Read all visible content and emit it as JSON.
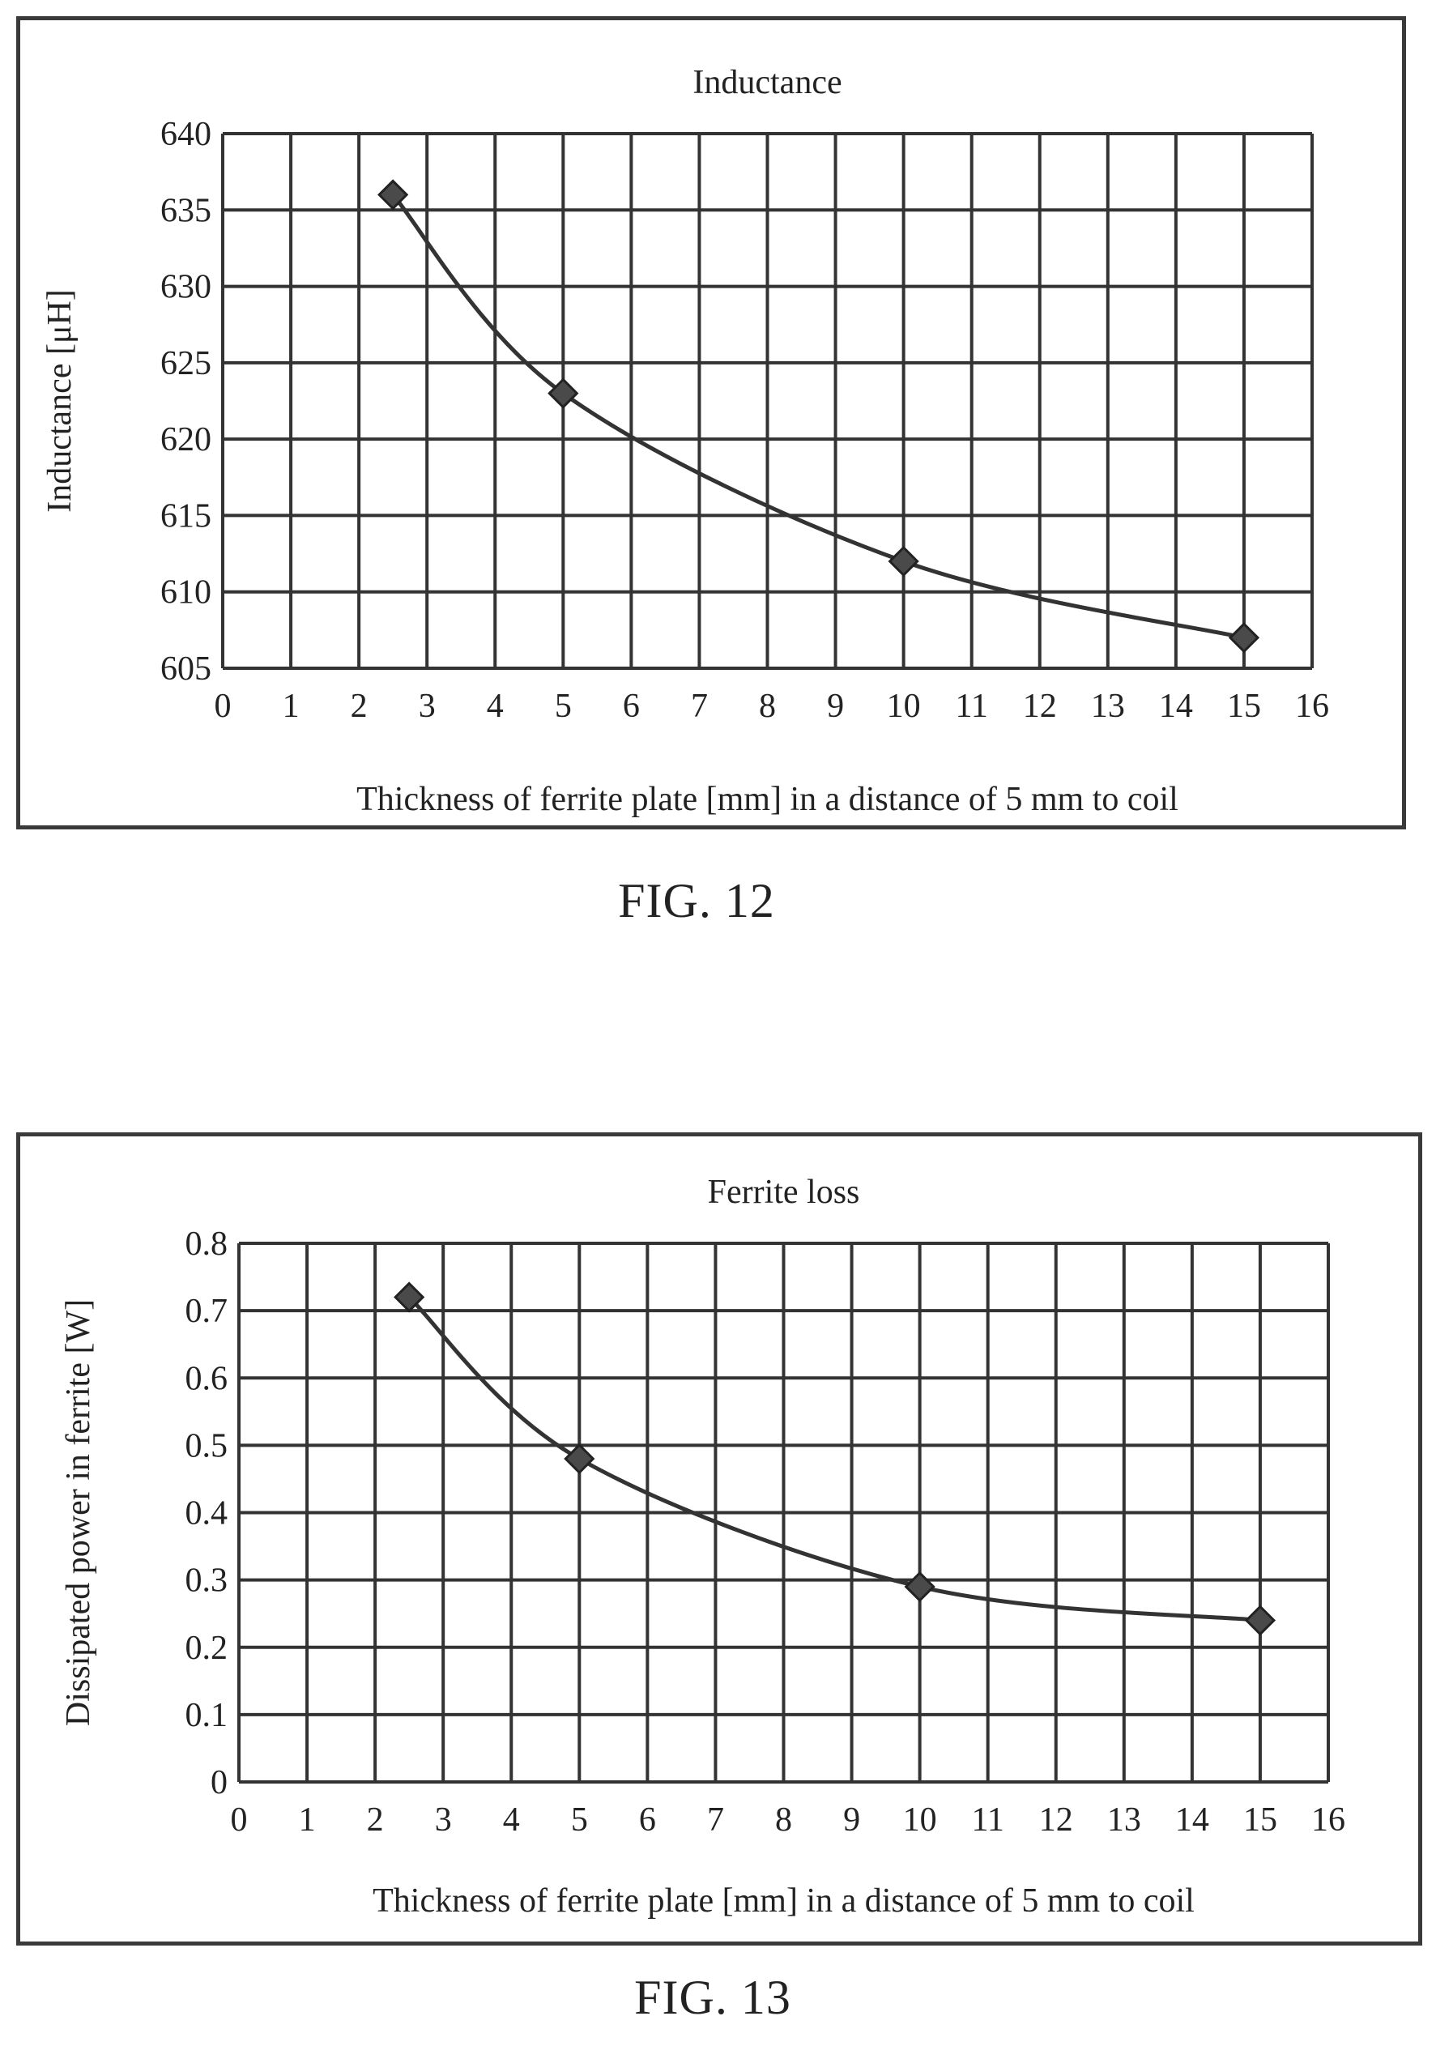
{
  "figures": [
    {
      "caption": "FIG. 12",
      "chart_data": {
        "type": "line",
        "title": "Inductance",
        "xlabel": "Thickness of ferrite plate [mm] in a distance of 5 mm to coil",
        "ylabel": "Inductance [μH]",
        "xlim": [
          0,
          16
        ],
        "ylim": [
          605,
          640
        ],
        "xticks": [
          0,
          1,
          2,
          3,
          4,
          5,
          6,
          7,
          8,
          9,
          10,
          11,
          12,
          13,
          14,
          15,
          16
        ],
        "yticks": [
          605,
          610,
          615,
          620,
          625,
          630,
          635,
          640
        ],
        "grid": true,
        "marker": "diamond",
        "smooth": true,
        "x": [
          2.5,
          5,
          10,
          15
        ],
        "y": [
          636,
          623,
          612,
          607
        ]
      }
    },
    {
      "caption": "FIG. 13",
      "chart_data": {
        "type": "line",
        "title": "Ferrite loss",
        "xlabel": "Thickness of ferrite plate [mm] in a distance of 5 mm to coil",
        "ylabel": "Dissipated power in ferrite [W]",
        "xlim": [
          0,
          16
        ],
        "ylim": [
          0,
          0.8
        ],
        "xticks": [
          0,
          1,
          2,
          3,
          4,
          5,
          6,
          7,
          8,
          9,
          10,
          11,
          12,
          13,
          14,
          15,
          16
        ],
        "yticks": [
          0,
          0.1,
          0.2,
          0.3,
          0.4,
          0.5,
          0.6,
          0.7,
          0.8
        ],
        "grid": true,
        "marker": "diamond",
        "smooth": true,
        "x": [
          2.5,
          5,
          10,
          15
        ],
        "y": [
          0.72,
          0.48,
          0.29,
          0.24
        ]
      }
    }
  ]
}
